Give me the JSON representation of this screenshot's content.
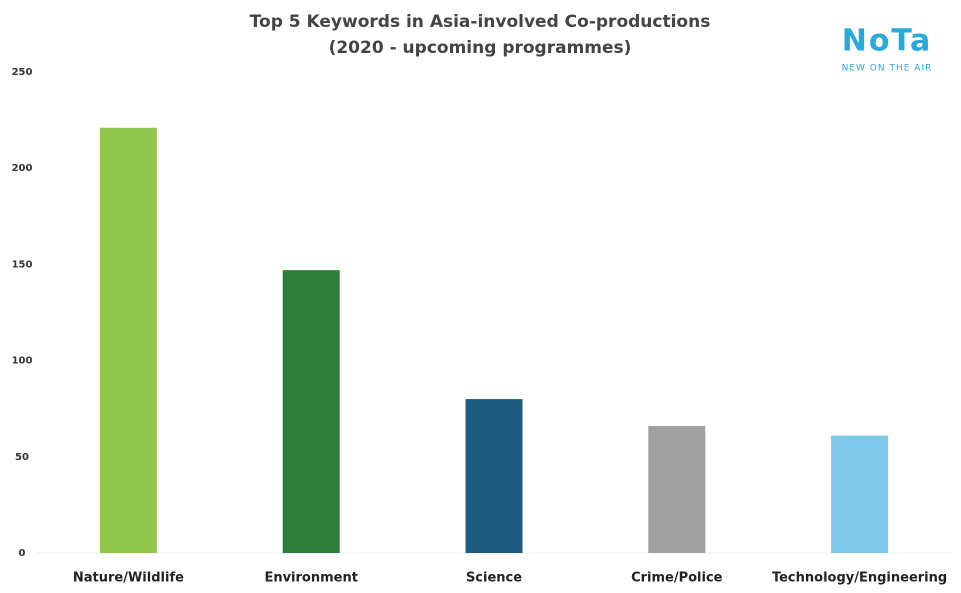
{
  "chart_data": {
    "type": "bar",
    "title": "Top 5 Keywords in Asia-involved Co-productions",
    "subtitle": "(2020 - upcoming programmes)",
    "logo": {
      "name": "NoTa",
      "tagline": "NEW ON THE AIR"
    },
    "categories": [
      "Nature/Wildlife",
      "Environment",
      "Science",
      "Crime/Police",
      "Technology/Engineering"
    ],
    "values": [
      221,
      147,
      80,
      66,
      61
    ],
    "colors": [
      "#92c74e",
      "#2e7d3a",
      "#1e5b80",
      "#a0a0a0",
      "#7ec8ec"
    ],
    "ylim": [
      0,
      250
    ],
    "yticks": [
      0,
      50,
      100,
      150,
      200,
      250
    ],
    "grid": false
  }
}
